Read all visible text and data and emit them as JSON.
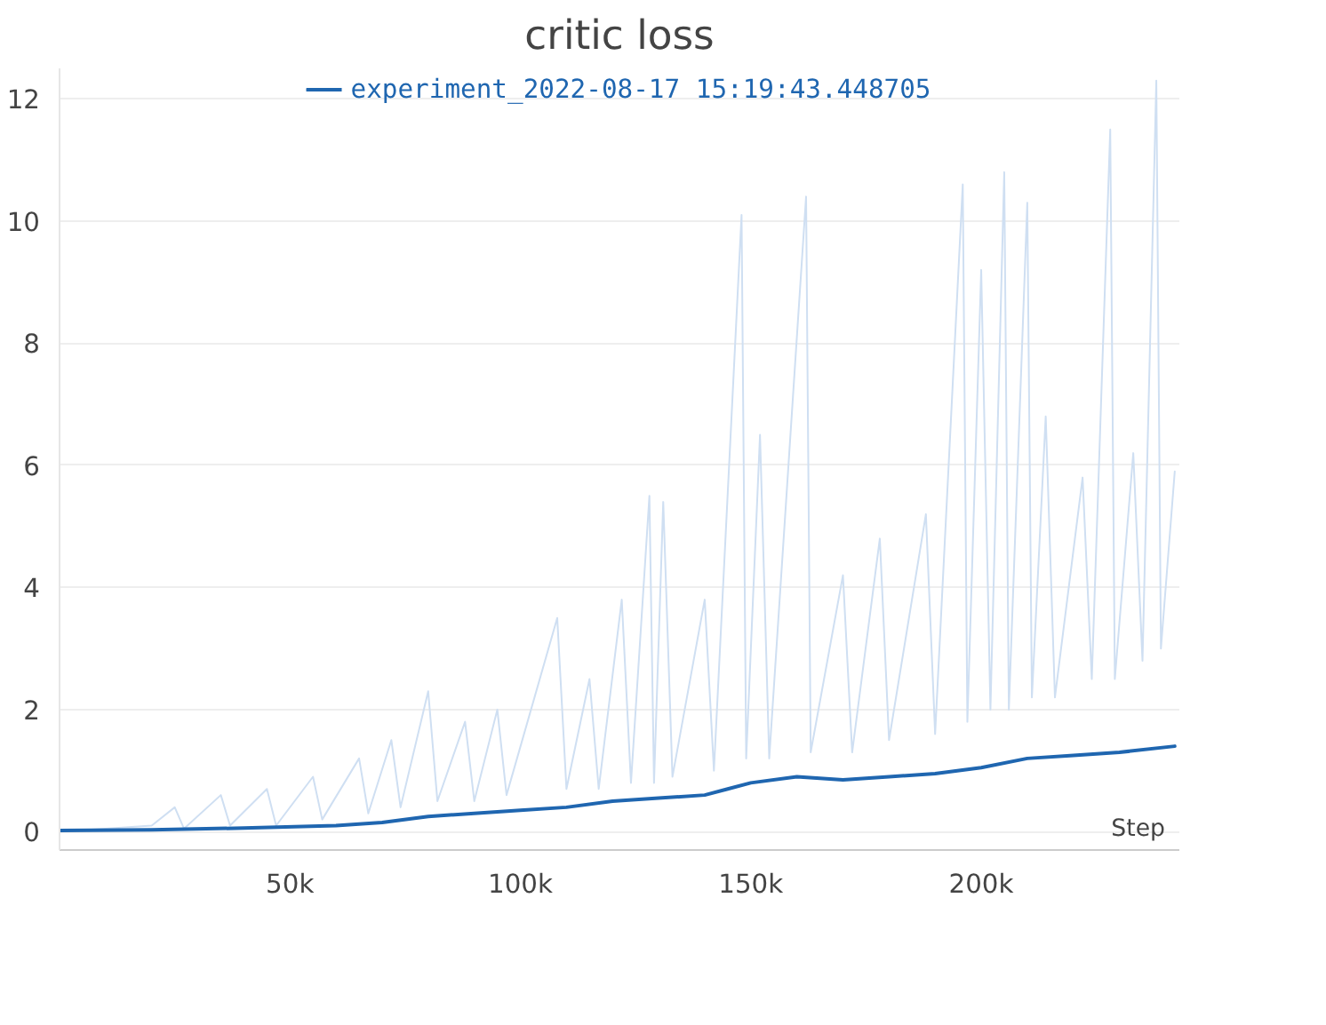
{
  "chart_data": {
    "type": "line",
    "title": "critic loss",
    "xlabel": "Step",
    "legend": "top",
    "grid": "y",
    "xlim": [
      0,
      243000
    ],
    "xticks": [
      {
        "value": 50000,
        "label": "50k"
      },
      {
        "value": 100000,
        "label": "100k"
      },
      {
        "value": 150000,
        "label": "150k"
      },
      {
        "value": 200000,
        "label": "200k"
      }
    ],
    "ylim": [
      -0.3,
      12.5
    ],
    "yticks": [
      0,
      2,
      4,
      6,
      8,
      10,
      12
    ],
    "series": [
      {
        "color": "#cfdff2",
        "x": [
          0,
          10000,
          20000,
          25000,
          27000,
          35000,
          37000,
          45000,
          47000,
          55000,
          57000,
          65000,
          67000,
          72000,
          74000,
          80000,
          82000,
          88000,
          90000,
          95000,
          97000,
          108000,
          110000,
          115000,
          117000,
          122000,
          124000,
          128000,
          129000,
          131000,
          133000,
          140000,
          142000,
          148000,
          149000,
          152000,
          154000,
          162000,
          163000,
          170000,
          172000,
          178000,
          180000,
          188000,
          190000,
          196000,
          197000,
          200000,
          202000,
          205000,
          206000,
          210000,
          211000,
          214000,
          216000,
          222000,
          224000,
          228000,
          229000,
          233000,
          235000,
          238000,
          239000,
          242000
        ],
        "values": [
          0,
          0.05,
          0.1,
          0.4,
          0.05,
          0.6,
          0.1,
          0.7,
          0.1,
          0.9,
          0.2,
          1.2,
          0.3,
          1.5,
          0.4,
          2.3,
          0.5,
          1.8,
          0.5,
          2.0,
          0.6,
          3.5,
          0.7,
          2.5,
          0.7,
          3.8,
          0.8,
          5.5,
          0.8,
          5.4,
          0.9,
          3.8,
          1.0,
          10.1,
          1.2,
          6.5,
          1.2,
          10.4,
          1.3,
          4.2,
          1.3,
          4.8,
          1.5,
          5.2,
          1.6,
          10.6,
          1.8,
          9.2,
          2.0,
          10.8,
          2.0,
          10.3,
          2.2,
          6.8,
          2.2,
          5.8,
          2.5,
          11.5,
          2.5,
          6.2,
          2.8,
          12.3,
          3.0,
          5.9
        ]
      },
      {
        "name": "experiment_2022-08-17 15:19:43.448705",
        "color": "#1f66b0",
        "x": [
          0,
          20000,
          40000,
          60000,
          70000,
          80000,
          90000,
          100000,
          110000,
          120000,
          130000,
          140000,
          145000,
          150000,
          160000,
          170000,
          180000,
          190000,
          200000,
          210000,
          220000,
          230000,
          242000
        ],
        "values": [
          0.02,
          0.03,
          0.06,
          0.1,
          0.15,
          0.25,
          0.3,
          0.35,
          0.4,
          0.5,
          0.55,
          0.6,
          0.7,
          0.8,
          0.9,
          0.85,
          0.9,
          0.95,
          1.05,
          1.2,
          1.25,
          1.3,
          1.4
        ]
      }
    ]
  }
}
